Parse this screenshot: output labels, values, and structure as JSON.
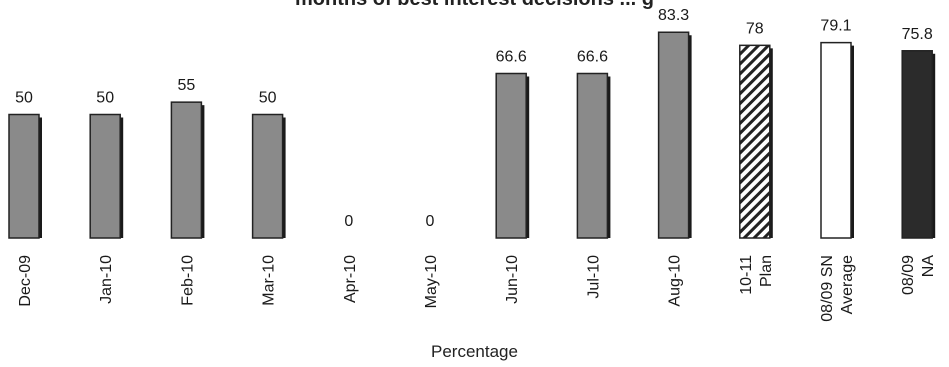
{
  "chart_data": {
    "type": "bar",
    "title": "months of best interest decisions ... g",
    "xlabel": "Percentage",
    "ylabel": "",
    "ylim": [
      0,
      90
    ],
    "grid": false,
    "categories": [
      [
        "Dec-09"
      ],
      [
        "Jan-10"
      ],
      [
        "Feb-10"
      ],
      [
        "Mar-10"
      ],
      [
        "Apr-10"
      ],
      [
        "May-10"
      ],
      [
        "Jun-10"
      ],
      [
        "Jul-10"
      ],
      [
        "Aug-10"
      ],
      [
        "10-11",
        "Plan"
      ],
      [
        "08/09 SN",
        "Average"
      ],
      [
        "08/09",
        "NA"
      ]
    ],
    "values": [
      50,
      50,
      55,
      50,
      0,
      0,
      66.6,
      66.6,
      83.3,
      78,
      79.1,
      75.8
    ],
    "value_labels": [
      "50",
      "50",
      "55",
      "50",
      "0",
      "0",
      "66.6",
      "66.6",
      "83.3",
      "78",
      "79.1",
      "75.8"
    ],
    "bar_styles": [
      "grey",
      "grey",
      "grey",
      "grey",
      "grey",
      "grey",
      "grey",
      "grey",
      "grey",
      "hatched",
      "white",
      "dark"
    ],
    "colors": {
      "grey": "#8a8a8a",
      "dark": "#2b2b2b",
      "white": "#ffffff",
      "shadow": "#1a1a1a",
      "outline": "#222222"
    }
  }
}
